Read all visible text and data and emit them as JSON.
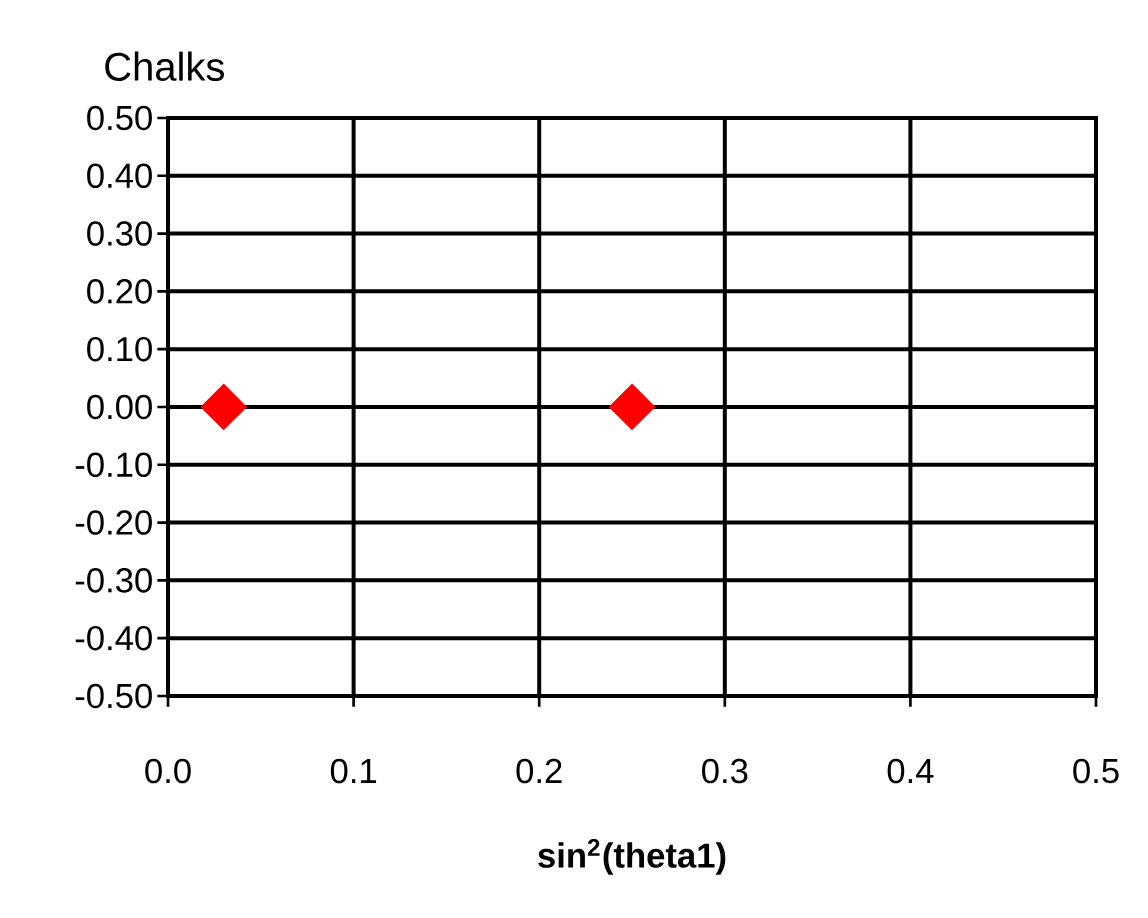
{
  "chart_data": {
    "type": "scatter",
    "title": "Chalks",
    "xlabel": "**sin$^{2}$(theta1)**",
    "x": [
      0.03,
      0.25
    ],
    "values": [
      0,
      0
    ],
    "color": "#ff0000",
    "marker": "diamond",
    "xlim": [
      0,
      0.5
    ],
    "ylim": [
      -0.5,
      0.5
    ],
    "xticks": [
      {
        "value": 0,
        "label": "0.0"
      },
      0.1,
      0.2,
      0.3,
      0.4,
      0.5
    ],
    "yticks": [
      {
        "value": -0.5,
        "label": "-0.50"
      },
      {
        "value": -0.4,
        "label": "-0.40"
      },
      {
        "value": -0.3,
        "label": "-0.30"
      },
      {
        "value": -0.2,
        "label": "-0.20"
      },
      {
        "value": -0.1,
        "label": "-0.10"
      },
      {
        "value": 0,
        "label": "0.00"
      },
      {
        "value": 0.1,
        "label": "0.10"
      },
      {
        "value": 0.2,
        "label": "0.20"
      },
      {
        "value": 0.3,
        "label": "0.30"
      },
      {
        "value": 0.4,
        "label": "0.40"
      },
      {
        "value": 0.5,
        "label": "0.50"
      }
    ],
    "grid": true
  }
}
